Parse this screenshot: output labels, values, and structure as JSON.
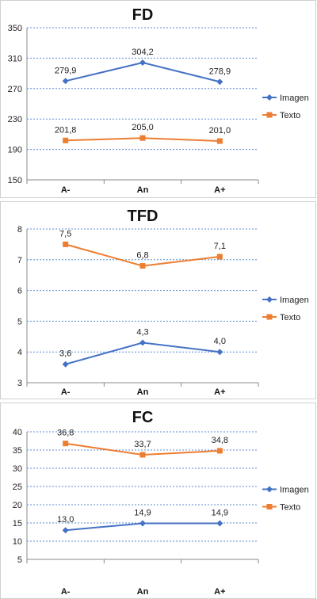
{
  "chart_data": [
    {
      "type": "line",
      "title": "FD",
      "categories": [
        "A-",
        "An",
        "A+"
      ],
      "ylim": [
        150,
        350
      ],
      "yticks": [
        150,
        190,
        230,
        270,
        310,
        350
      ],
      "series": [
        {
          "name": "Imagen",
          "values": [
            279.9,
            304.2,
            278.9
          ],
          "labels": [
            "279,9",
            "304,2",
            "278,9"
          ],
          "color": "#4472C4",
          "marker": "diamond"
        },
        {
          "name": "Texto",
          "values": [
            201.8,
            205.0,
            201.0
          ],
          "labels": [
            "201,8",
            "205,0",
            "201,0"
          ],
          "color": "#ED7D31",
          "marker": "square"
        }
      ],
      "grid": true,
      "legend": "right"
    },
    {
      "type": "line",
      "title": "TFD",
      "categories": [
        "A-",
        "An",
        "A+"
      ],
      "ylim": [
        3,
        8
      ],
      "yticks": [
        3,
        4,
        5,
        6,
        7,
        8
      ],
      "series": [
        {
          "name": "Imagen",
          "values": [
            3.6,
            4.3,
            4.0
          ],
          "labels": [
            "3,6",
            "4,3",
            "4,0"
          ],
          "color": "#4472C4",
          "marker": "diamond"
        },
        {
          "name": "Texto",
          "values": [
            7.5,
            6.8,
            7.1
          ],
          "labels": [
            "7,5",
            "6,8",
            "7,1"
          ],
          "color": "#ED7D31",
          "marker": "square"
        }
      ],
      "grid": true,
      "legend": "right"
    },
    {
      "type": "line",
      "title": "FC",
      "categories": [
        "A-",
        "An",
        "A+"
      ],
      "ylim": [
        5,
        40
      ],
      "yticks": [
        5,
        10,
        15,
        20,
        25,
        30,
        35,
        40
      ],
      "series": [
        {
          "name": "Imagen",
          "values": [
            13.0,
            14.9,
            14.9
          ],
          "labels": [
            "13,0",
            "14,9",
            "14,9"
          ],
          "color": "#4472C4",
          "marker": "diamond"
        },
        {
          "name": "Texto",
          "values": [
            36.8,
            33.7,
            34.8
          ],
          "labels": [
            "36,8",
            "33,7",
            "34,8"
          ],
          "color": "#ED7D31",
          "marker": "square"
        }
      ],
      "grid": true,
      "legend": "right"
    }
  ]
}
